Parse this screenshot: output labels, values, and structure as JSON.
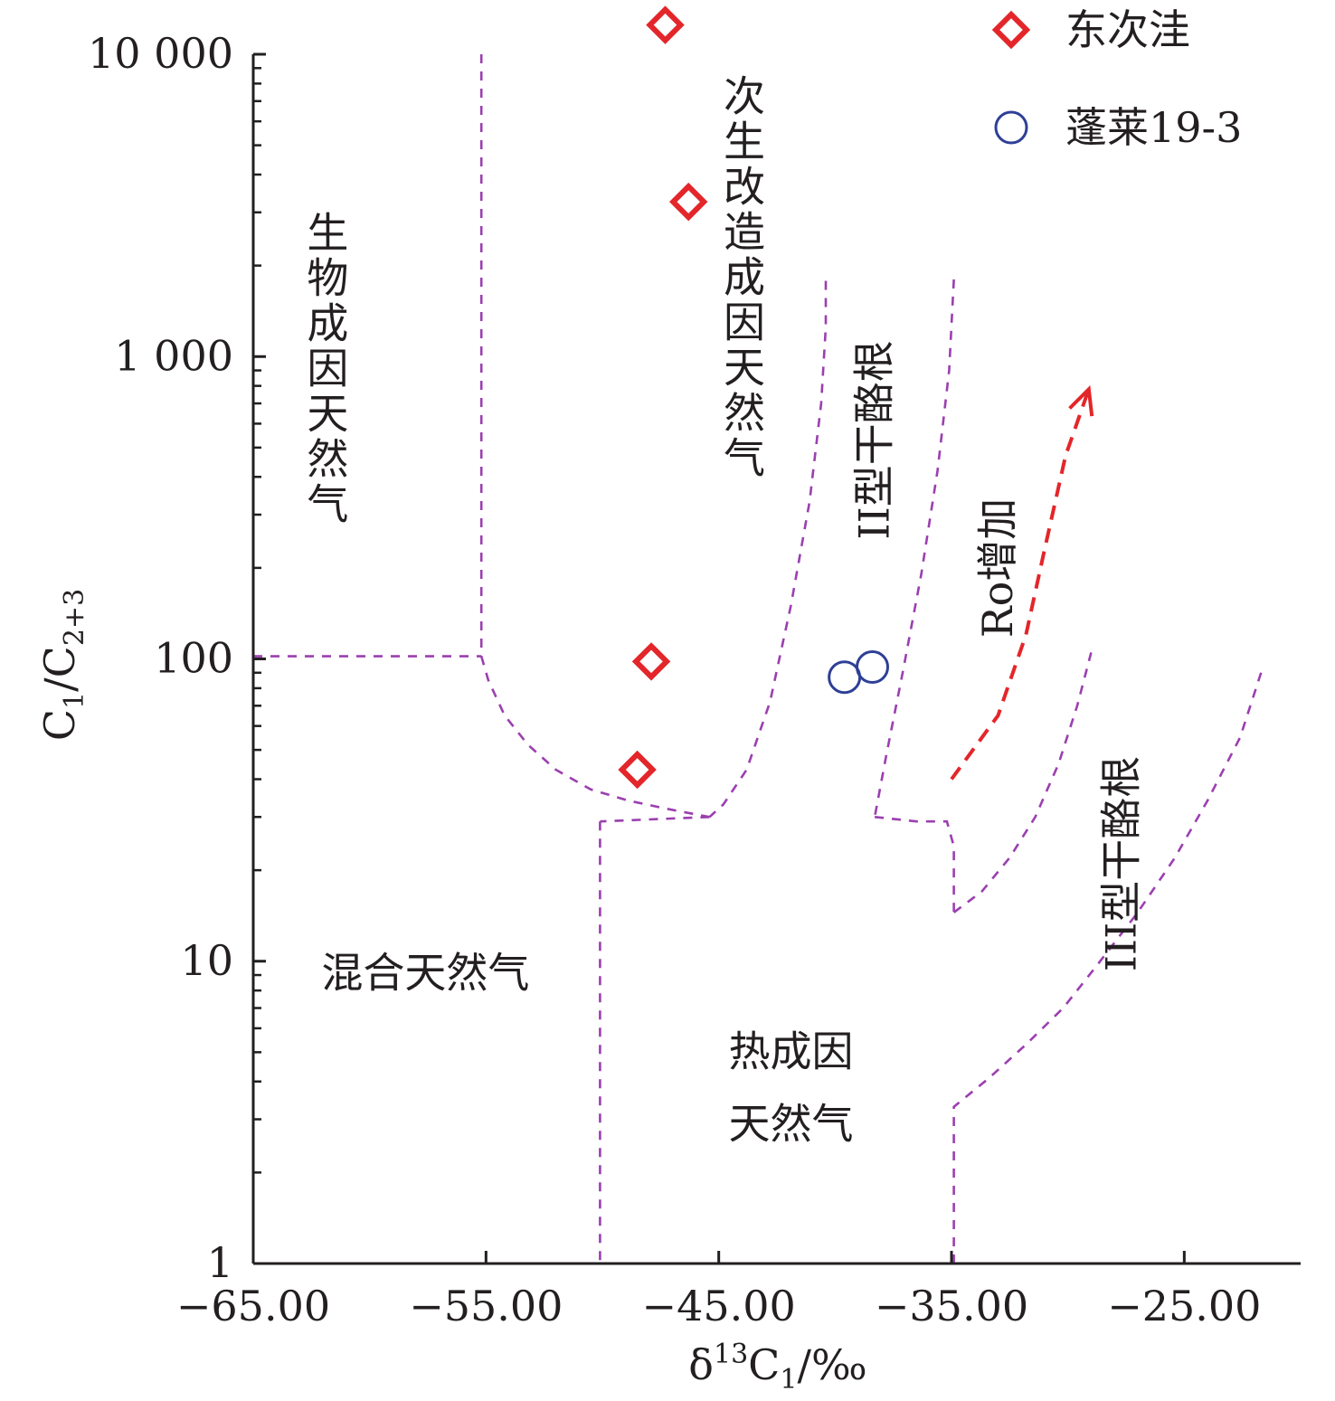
{
  "chart_data": {
    "type": "scatter",
    "xlabel": "δ13C1/‰",
    "xlabel_parts": {
      "delta": "δ",
      "sup": "13",
      "c": "C",
      "sub": "1",
      "unit": "/‰"
    },
    "ylabel": "C1/C2+3",
    "ylabel_parts": {
      "c1": "C",
      "sub1": "1",
      "slash": "/C",
      "sub2": "2+3"
    },
    "x_range": [
      -65,
      -20
    ],
    "y_range": [
      1,
      10000
    ],
    "y_scale": "log",
    "x_ticks": [
      {
        "value": -65,
        "label": "−65.00"
      },
      {
        "value": -55,
        "label": "−55.00"
      },
      {
        "value": -45,
        "label": "−45.00"
      },
      {
        "value": -35,
        "label": "−35.00"
      },
      {
        "value": -25,
        "label": "−25.00"
      }
    ],
    "y_ticks": [
      {
        "value": 1,
        "label": "1"
      },
      {
        "value": 10,
        "label": "10"
      },
      {
        "value": 100,
        "label": "100"
      },
      {
        "value": 1000,
        "label": "1 000"
      },
      {
        "value": 10000,
        "label": "10 000"
      }
    ],
    "legend_position": "top-right",
    "series": [
      {
        "name": "东次洼",
        "marker": "diamond",
        "color": "#e3262a",
        "points": [
          {
            "x": -47.3,
            "y": 12500
          },
          {
            "x": -46.3,
            "y": 3250
          },
          {
            "x": -47.9,
            "y": 98
          },
          {
            "x": -48.5,
            "y": 43
          }
        ]
      },
      {
        "name": "蓬莱19-3",
        "marker": "circle",
        "color": "#2e3f97",
        "points": [
          {
            "x": -38.4,
            "y": 94
          },
          {
            "x": -39.6,
            "y": 87
          }
        ]
      }
    ],
    "zones": [
      {
        "label": "生物成因天然气",
        "x": -61.8,
        "y": 2300,
        "vertical": true
      },
      {
        "label": "次生改造成因天然气",
        "x": -43.9,
        "y": 6500,
        "vertical": true
      },
      {
        "label": "II型干酪根",
        "x": -37.7,
        "y": 530,
        "rotated": true
      },
      {
        "label": "Ro增加",
        "x": -32.4,
        "y": 200,
        "rotated": true
      },
      {
        "label": "III型干酪根",
        "x": -27.1,
        "y": 21,
        "rotated": true
      },
      {
        "label": "混合天然气",
        "x": -57.6,
        "y": 8.2
      },
      {
        "label": "热成因",
        "x": -41.9,
        "y": 4.5
      },
      {
        "label": "天然气",
        "x": -41.9,
        "y": 2.6
      }
    ],
    "boundaries": [
      {
        "points": [
          [
            -65,
            102
          ],
          [
            -55.2,
            102
          ]
        ]
      },
      {
        "points": [
          [
            -55.2,
            10000
          ],
          [
            -55.2,
            102
          ]
        ]
      },
      {
        "points": [
          [
            -55.2,
            102
          ],
          [
            -54.9,
            85
          ],
          [
            -54.2,
            65
          ],
          [
            -53.2,
            52
          ],
          [
            -52,
            43
          ],
          [
            -50.5,
            37
          ],
          [
            -48.9,
            34
          ],
          [
            -47.3,
            32
          ],
          [
            -45.4,
            30
          ]
        ]
      },
      {
        "points": [
          [
            -40.4,
            1780
          ],
          [
            -40.4,
            1250
          ],
          [
            -40.6,
            700
          ],
          [
            -41.1,
            330
          ],
          [
            -41.9,
            150
          ],
          [
            -42.8,
            72
          ],
          [
            -43.8,
            43
          ],
          [
            -44.8,
            33
          ],
          [
            -45.4,
            30
          ]
        ]
      },
      {
        "points": [
          [
            -45.4,
            30
          ],
          [
            -50.1,
            29
          ]
        ]
      },
      {
        "points": [
          [
            -50.1,
            29
          ],
          [
            -50.1,
            1
          ]
        ]
      },
      {
        "points": [
          [
            -34.9,
            1800
          ],
          [
            -35.1,
            900
          ],
          [
            -35.6,
            420
          ],
          [
            -36.3,
            190
          ],
          [
            -37.1,
            90
          ],
          [
            -37.8,
            48
          ],
          [
            -38.3,
            30
          ]
        ]
      },
      {
        "points": [
          [
            -38.3,
            30
          ],
          [
            -36.5,
            29
          ],
          [
            -35.2,
            29
          ],
          [
            -34.9,
            24
          ],
          [
            -34.9,
            14.5
          ]
        ]
      },
      {
        "points": [
          [
            -34.9,
            14.5
          ],
          [
            -33.7,
            17
          ],
          [
            -32.5,
            22
          ],
          [
            -31.4,
            30
          ],
          [
            -30.4,
            45
          ],
          [
            -29.6,
            70
          ],
          [
            -29,
            105
          ]
        ]
      },
      {
        "points": [
          [
            -34.9,
            1
          ],
          [
            -34.9,
            3.3
          ],
          [
            -33.4,
            4.1
          ],
          [
            -31.8,
            5.3
          ],
          [
            -30.2,
            7
          ],
          [
            -28.7,
            9.8
          ],
          [
            -27,
            14.5
          ],
          [
            -25.4,
            22
          ],
          [
            -24,
            34
          ],
          [
            -22.6,
            55
          ],
          [
            -21.6,
            95
          ]
        ]
      }
    ],
    "arrow": {
      "label_ref": "Ro增加",
      "color": "#e3262a",
      "points": [
        [
          -35,
          40
        ],
        [
          -33,
          65
        ],
        [
          -31.8,
          120
        ],
        [
          -31,
          230
        ],
        [
          -30.1,
          470
        ],
        [
          -29.1,
          780
        ]
      ]
    }
  }
}
